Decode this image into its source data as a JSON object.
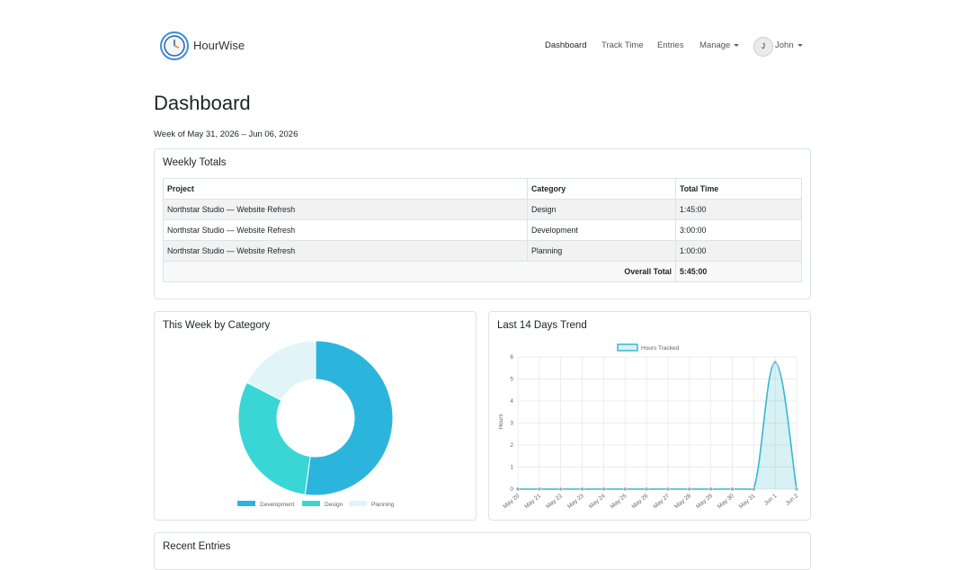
{
  "header": {
    "brand": "HourWise",
    "nav": [
      "Dashboard",
      "Track Time",
      "Entries",
      "Manage"
    ],
    "user_initial": "J",
    "user_name": "John"
  },
  "page": {
    "title": "Dashboard",
    "subtitle": "Week of May 31, 2026 – Jun 06, 2026"
  },
  "weekly_totals": {
    "title": "Weekly Totals",
    "columns": [
      "Project",
      "Category",
      "Total Time"
    ],
    "rows": [
      [
        "Northstar Studio — Website Refresh",
        "Design",
        "1:45:00"
      ],
      [
        "Northstar Studio — Website Refresh",
        "Development",
        "3:00:00"
      ],
      [
        "Northstar Studio — Website Refresh",
        "Planning",
        "1:00:00"
      ]
    ],
    "total_label": "Overall Total",
    "total_value": "5:45:00"
  },
  "chart_data": [
    {
      "type": "pie",
      "title": "This Week by Category",
      "categories": [
        "Development",
        "Design",
        "Planning"
      ],
      "values": [
        3,
        1.75,
        1
      ],
      "colors": [
        "#2cb5dc",
        "#3ad6d6",
        "#e1f5f8"
      ]
    },
    {
      "type": "line",
      "title": "Last 14 Days Trend",
      "y_label": "Hours",
      "categories": [
        "May 20",
        "May 21",
        "May 22",
        "May 23",
        "May 24",
        "May 25",
        "May 26",
        "May 27",
        "May 28",
        "May 29",
        "May 30",
        "May 31",
        "Jun 1",
        "Jun 2"
      ],
      "series": [
        {
          "name": "Hours Tracked",
          "color": "#36b9cc",
          "values": [
            0,
            0,
            0,
            0,
            0,
            0,
            0,
            0,
            0,
            0,
            0,
            0,
            5.75,
            0
          ]
        }
      ],
      "ylim": [
        0,
        6
      ],
      "yticks": [
        0,
        1,
        2,
        3,
        4,
        5,
        6
      ],
      "grid": true
    }
  ],
  "recent_entries": {
    "title": "Recent Entries"
  }
}
